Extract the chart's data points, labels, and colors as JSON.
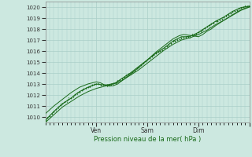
{
  "xlabel": "Pression niveau de la mer( hPa )",
  "ylim": [
    1009.5,
    1020.5
  ],
  "xlim": [
    0,
    192
  ],
  "yticks": [
    1010,
    1011,
    1012,
    1013,
    1014,
    1015,
    1016,
    1017,
    1018,
    1019,
    1020
  ],
  "xtick_positions": [
    48,
    96,
    144,
    192
  ],
  "xtick_labels": [
    "Ven",
    "Sam",
    "Dim",
    ""
  ],
  "bg_color": "#cce8e0",
  "grid_color": "#aacfc8",
  "line_color": "#1a6b1a",
  "dot_color": "#1a6b1a",
  "major_vline_color": "#cc4444",
  "main_line": [
    [
      0,
      1009.7
    ],
    [
      8,
      1010.5
    ],
    [
      16,
      1011.2
    ],
    [
      24,
      1011.7
    ],
    [
      32,
      1012.3
    ],
    [
      40,
      1012.7
    ],
    [
      48,
      1013.0
    ],
    [
      56,
      1012.9
    ],
    [
      60,
      1012.95
    ],
    [
      66,
      1013.1
    ],
    [
      72,
      1013.5
    ],
    [
      80,
      1014.0
    ],
    [
      88,
      1014.6
    ],
    [
      96,
      1015.2
    ],
    [
      104,
      1015.8
    ],
    [
      112,
      1016.3
    ],
    [
      120,
      1016.9
    ],
    [
      128,
      1017.3
    ],
    [
      132,
      1017.3
    ],
    [
      136,
      1017.35
    ],
    [
      140,
      1017.5
    ],
    [
      144,
      1017.7
    ],
    [
      152,
      1018.2
    ],
    [
      160,
      1018.7
    ],
    [
      168,
      1019.1
    ],
    [
      176,
      1019.6
    ],
    [
      184,
      1019.95
    ],
    [
      192,
      1020.1
    ]
  ],
  "upper_line": [
    [
      0,
      1010.3
    ],
    [
      8,
      1011.0
    ],
    [
      16,
      1011.6
    ],
    [
      24,
      1012.2
    ],
    [
      32,
      1012.7
    ],
    [
      40,
      1013.0
    ],
    [
      48,
      1013.2
    ],
    [
      52,
      1013.1
    ],
    [
      56,
      1012.9
    ],
    [
      60,
      1012.8
    ],
    [
      64,
      1012.85
    ],
    [
      68,
      1013.0
    ],
    [
      72,
      1013.3
    ],
    [
      80,
      1013.9
    ],
    [
      88,
      1014.5
    ],
    [
      96,
      1015.2
    ],
    [
      104,
      1015.9
    ],
    [
      112,
      1016.5
    ],
    [
      120,
      1017.1
    ],
    [
      126,
      1017.4
    ],
    [
      130,
      1017.5
    ],
    [
      134,
      1017.45
    ],
    [
      138,
      1017.4
    ],
    [
      144,
      1017.3
    ],
    [
      148,
      1017.5
    ],
    [
      152,
      1017.8
    ],
    [
      156,
      1018.0
    ],
    [
      160,
      1018.3
    ],
    [
      168,
      1018.8
    ],
    [
      176,
      1019.3
    ],
    [
      184,
      1019.75
    ],
    [
      192,
      1020.05
    ]
  ],
  "lower_line": [
    [
      0,
      1009.5
    ],
    [
      8,
      1010.2
    ],
    [
      16,
      1010.9
    ],
    [
      24,
      1011.4
    ],
    [
      32,
      1011.9
    ],
    [
      40,
      1012.3
    ],
    [
      48,
      1012.6
    ],
    [
      56,
      1012.8
    ],
    [
      64,
      1013.0
    ],
    [
      72,
      1013.3
    ],
    [
      80,
      1013.8
    ],
    [
      88,
      1014.3
    ],
    [
      96,
      1014.9
    ],
    [
      104,
      1015.5
    ],
    [
      112,
      1016.1
    ],
    [
      120,
      1016.6
    ],
    [
      128,
      1017.0
    ],
    [
      132,
      1017.1
    ],
    [
      136,
      1017.2
    ],
    [
      140,
      1017.35
    ],
    [
      144,
      1017.5
    ],
    [
      152,
      1017.9
    ],
    [
      160,
      1018.4
    ],
    [
      168,
      1018.8
    ],
    [
      176,
      1019.25
    ],
    [
      184,
      1019.7
    ],
    [
      192,
      1020.0
    ]
  ],
  "scatter_x": [
    0,
    2,
    4,
    6,
    8,
    10,
    12,
    14,
    16,
    18,
    20,
    22,
    24,
    26,
    28,
    30,
    32,
    34,
    36,
    38,
    40,
    42,
    44,
    46,
    48,
    50,
    52,
    54,
    56,
    58,
    60,
    62,
    64,
    66,
    68,
    70,
    72,
    74,
    76,
    78,
    80,
    82,
    84,
    86,
    88,
    90,
    92,
    94,
    96,
    98,
    100,
    102,
    104,
    106,
    108,
    110,
    112,
    114,
    116,
    118,
    120,
    122,
    124,
    126,
    128,
    130,
    132,
    134,
    136,
    138,
    140,
    142,
    144,
    146,
    148,
    150,
    152,
    154,
    156,
    158,
    160,
    162,
    164,
    166,
    168,
    170,
    172,
    174,
    176,
    178,
    180,
    182,
    184,
    186,
    188,
    190,
    192
  ],
  "scatter_y_main": [
    1009.7,
    1009.9,
    1010.1,
    1010.3,
    1010.5,
    1010.7,
    1010.9,
    1011.1,
    1011.2,
    1011.35,
    1011.5,
    1011.65,
    1011.7,
    1011.9,
    1012.1,
    1012.2,
    1012.3,
    1012.45,
    1012.55,
    1012.65,
    1012.7,
    1012.8,
    1012.9,
    1013.0,
    1013.0,
    1012.97,
    1012.94,
    1012.92,
    1012.9,
    1012.93,
    1012.95,
    1013.0,
    1013.05,
    1013.1,
    1013.2,
    1013.35,
    1013.5,
    1013.65,
    1013.8,
    1013.9,
    1014.0,
    1014.1,
    1014.25,
    1014.4,
    1014.6,
    1014.75,
    1014.9,
    1015.05,
    1015.2,
    1015.35,
    1015.5,
    1015.65,
    1015.8,
    1015.9,
    1016.0,
    1016.1,
    1016.3,
    1016.4,
    1016.55,
    1016.7,
    1016.9,
    1016.95,
    1017.0,
    1017.1,
    1017.2,
    1017.25,
    1017.3,
    1017.3,
    1017.35,
    1017.4,
    1017.5,
    1017.6,
    1017.7,
    1017.8,
    1017.95,
    1018.1,
    1018.2,
    1018.35,
    1018.5,
    1018.6,
    1018.7,
    1018.75,
    1018.85,
    1018.95,
    1019.1,
    1019.2,
    1019.3,
    1019.4,
    1019.55,
    1019.65,
    1019.75,
    1019.85,
    1019.95,
    1020.0,
    1020.05,
    1020.07,
    1020.1
  ]
}
